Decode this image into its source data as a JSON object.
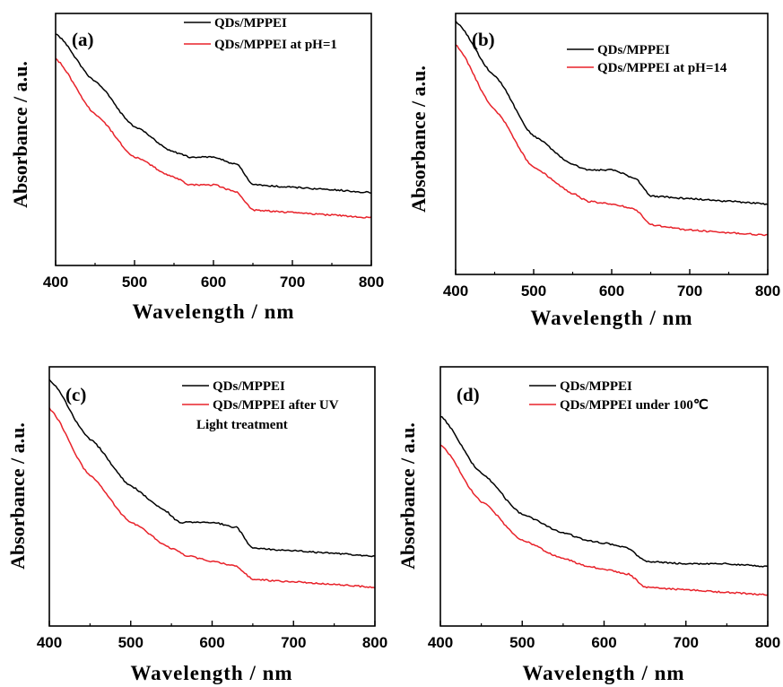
{
  "chart_data": [
    {
      "panel": "(a)",
      "type": "line",
      "xlabel": "Wavelength / nm",
      "ylabel": "Absorbance / a.u.",
      "xlim": [
        400,
        800
      ],
      "ylim": [
        0,
        1
      ],
      "xticks": [
        "400",
        "500",
        "600",
        "700",
        "800"
      ],
      "yticks": [],
      "legend": {
        "placement": "top-right",
        "entries": [
          "QDs/MPPEI",
          "QDs/MPPEI at pH=1"
        ]
      },
      "series": [
        {
          "name": "QDs/MPPEI",
          "color": "#000000",
          "x": [
            400,
            450,
            500,
            550,
            570,
            600,
            630,
            650,
            700,
            750,
            800
          ],
          "y": [
            0.92,
            0.73,
            0.55,
            0.45,
            0.43,
            0.43,
            0.4,
            0.32,
            0.31,
            0.3,
            0.29
          ]
        },
        {
          "name": "QDs/MPPEI at pH=1",
          "color": "#e8222a",
          "x": [
            400,
            450,
            500,
            550,
            570,
            600,
            630,
            650,
            700,
            750,
            800
          ],
          "y": [
            0.82,
            0.6,
            0.43,
            0.35,
            0.32,
            0.32,
            0.29,
            0.22,
            0.21,
            0.2,
            0.19
          ]
        }
      ]
    },
    {
      "panel": "(b)",
      "type": "line",
      "xlabel": "Wavelength / nm",
      "ylabel": "Absorbance / a.u.",
      "xlim": [
        400,
        800
      ],
      "ylim": [
        0,
        1
      ],
      "xticks": [
        "400",
        "500",
        "600",
        "700",
        "800"
      ],
      "yticks": [],
      "legend": {
        "placement": "top-right",
        "entries": [
          "QDs/MPPEI",
          "QDs/MPPEI at pH=14"
        ]
      },
      "series": [
        {
          "name": "QDs/MPPEI",
          "color": "#000000",
          "x": [
            400,
            450,
            500,
            550,
            570,
            600,
            630,
            650,
            700,
            750,
            800
          ],
          "y": [
            0.97,
            0.76,
            0.53,
            0.42,
            0.4,
            0.4,
            0.37,
            0.3,
            0.29,
            0.28,
            0.27
          ]
        },
        {
          "name": "QDs/MPPEI at pH=14",
          "color": "#e8222a",
          "x": [
            400,
            450,
            500,
            550,
            570,
            600,
            630,
            650,
            700,
            750,
            800
          ],
          "y": [
            0.88,
            0.63,
            0.41,
            0.31,
            0.28,
            0.27,
            0.25,
            0.19,
            0.17,
            0.16,
            0.15
          ]
        }
      ]
    },
    {
      "panel": "(c)",
      "type": "line",
      "xlabel": "Wavelength / nm",
      "ylabel": "Absorbance / a.u.",
      "xlim": [
        400,
        800
      ],
      "ylim": [
        0,
        1
      ],
      "xticks": [
        "400",
        "500",
        "600",
        "700",
        "800"
      ],
      "yticks": [],
      "legend": {
        "placement": "top-right",
        "entries": [
          "QDs/MPPEI",
          "QDs/MPPEI after UV Light treatment"
        ]
      },
      "series": [
        {
          "name": "QDs/MPPEI",
          "color": "#000000",
          "x": [
            400,
            450,
            500,
            540,
            560,
            600,
            630,
            650,
            700,
            750,
            800
          ],
          "y": [
            0.95,
            0.72,
            0.54,
            0.45,
            0.4,
            0.4,
            0.38,
            0.3,
            0.29,
            0.28,
            0.27
          ]
        },
        {
          "name": "QDs/MPPEI after UV Light treatment",
          "color": "#e8222a",
          "x": [
            400,
            450,
            500,
            550,
            570,
            600,
            630,
            650,
            700,
            750,
            800
          ],
          "y": [
            0.84,
            0.58,
            0.4,
            0.3,
            0.27,
            0.25,
            0.23,
            0.18,
            0.17,
            0.16,
            0.15
          ]
        }
      ]
    },
    {
      "panel": "(d)",
      "type": "line",
      "xlabel": "Wavelength / nm",
      "ylabel": "Absorbance / a.u.",
      "xlim": [
        400,
        800
      ],
      "ylim": [
        0,
        1
      ],
      "xticks": [
        "400",
        "500",
        "600",
        "700",
        "800"
      ],
      "yticks": [],
      "legend": {
        "placement": "top-left",
        "entries": [
          "QDs/MPPEI",
          "QDs/MPPEI under 100℃"
        ]
      },
      "series": [
        {
          "name": "QDs/MPPEI",
          "color": "#000000",
          "x": [
            400,
            450,
            500,
            550,
            580,
            600,
            630,
            650,
            700,
            750,
            800
          ],
          "y": [
            0.81,
            0.59,
            0.43,
            0.36,
            0.33,
            0.32,
            0.3,
            0.25,
            0.24,
            0.24,
            0.23
          ]
        },
        {
          "name": "QDs/MPPEI under 100℃",
          "color": "#e8222a",
          "x": [
            400,
            450,
            500,
            550,
            580,
            600,
            630,
            650,
            700,
            750,
            800
          ],
          "y": [
            0.7,
            0.48,
            0.33,
            0.26,
            0.23,
            0.22,
            0.2,
            0.15,
            0.14,
            0.13,
            0.12
          ]
        }
      ]
    }
  ]
}
